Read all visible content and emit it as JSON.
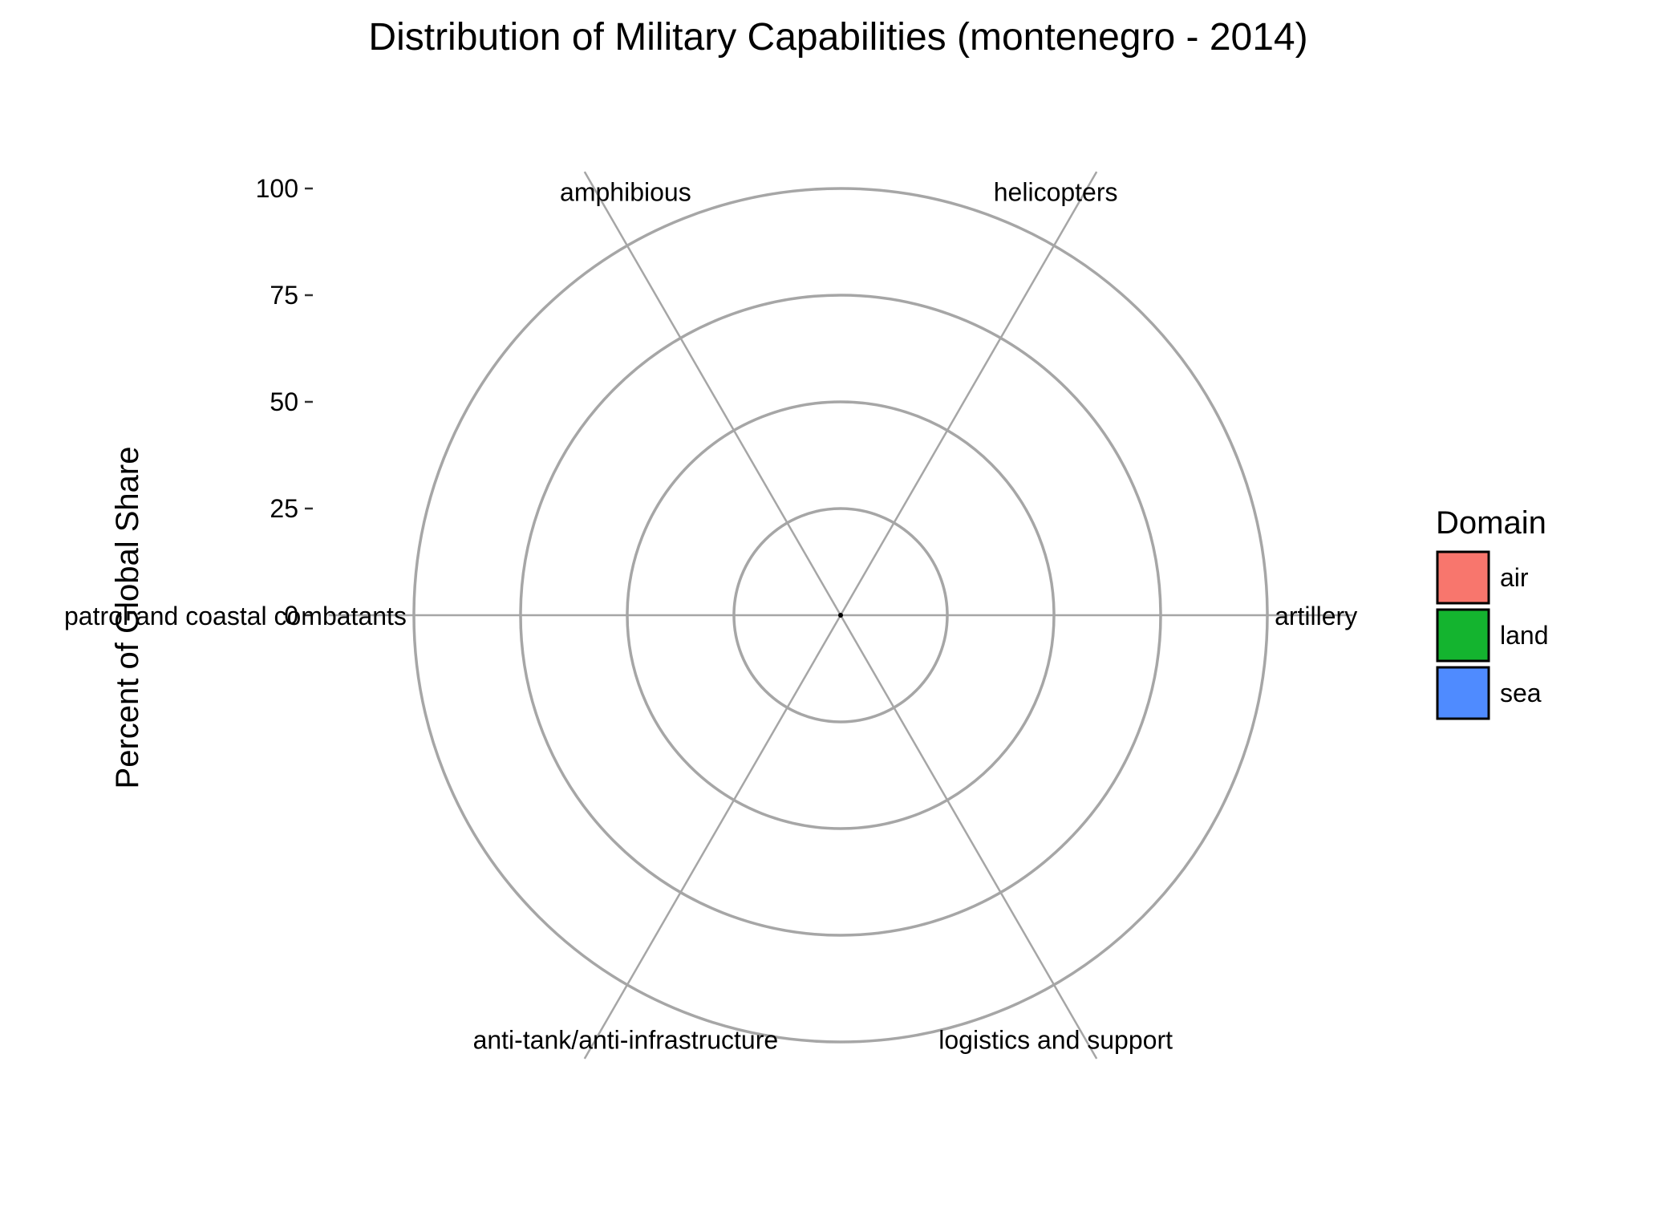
{
  "chart_data": {
    "type": "radar",
    "title": "Distribution of Military Capabilities (montenegro - 2014)",
    "ylabel": "Percent of Global Share",
    "ylim": [
      0,
      100
    ],
    "yticks": [
      0,
      25,
      50,
      75,
      100
    ],
    "categories": [
      "artillery",
      "helicopters",
      "amphibious",
      "patrol and coastal combatants",
      "anti-tank/anti-infrastructure",
      "logistics and support"
    ],
    "values": [
      0,
      0,
      0,
      0,
      0,
      0
    ],
    "legend": {
      "title": "Domain",
      "placement": "right",
      "items": [
        {
          "label": "air",
          "color": "#F8766D"
        },
        {
          "label": "land",
          "color": "#14B42F"
        },
        {
          "label": "sea",
          "color": "#4F8BFF"
        }
      ]
    },
    "grid": true,
    "grid_color": "#a6a6a6"
  }
}
